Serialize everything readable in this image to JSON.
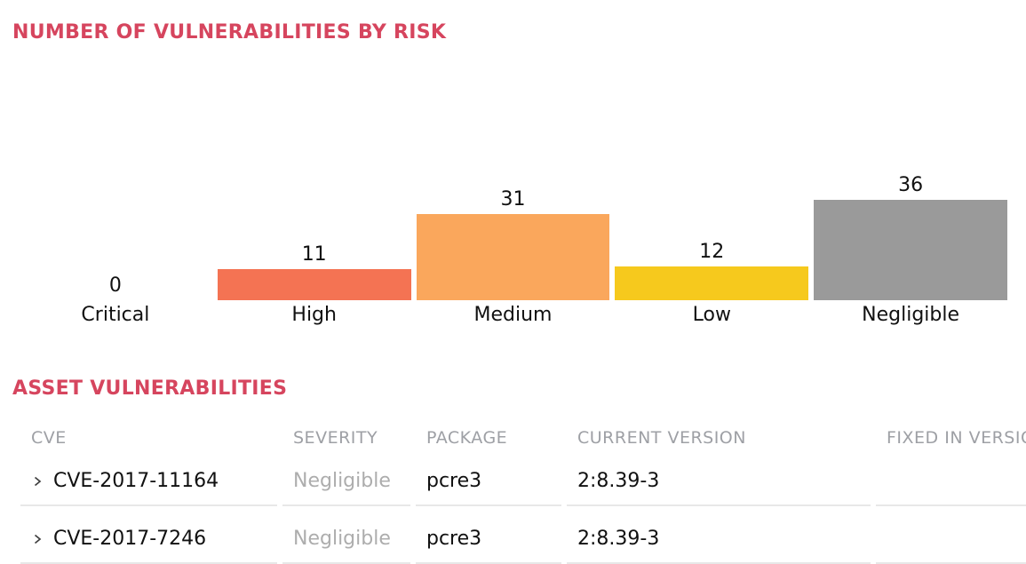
{
  "risk_chart": {
    "title": "NUMBER OF VULNERABILITIES BY RISK",
    "chart_data": {
      "type": "bar",
      "categories": [
        "Critical",
        "High",
        "Medium",
        "Low",
        "Negligible"
      ],
      "values": [
        0,
        11,
        31,
        12,
        36
      ],
      "bar_colors": [
        null,
        "#f47353",
        "#faa75c",
        "#f6c91d",
        "#9a9a9a"
      ],
      "title": "NUMBER OF VULNERABILITIES BY RISK",
      "xlabel": "",
      "ylabel": "",
      "ylim": [
        0,
        36
      ],
      "grid": false,
      "legend": false,
      "value_labels": true
    }
  },
  "asset_table": {
    "title": "ASSET VULNERABILITIES",
    "columns": [
      "CVE",
      "SEVERITY",
      "PACKAGE",
      "CURRENT VERSION",
      "FIXED IN VERSION"
    ],
    "rows": [
      {
        "cve": "CVE-2017-11164",
        "severity": "Negligible",
        "package": "pcre3",
        "current_version": "2:8.39-3",
        "fixed_in_version": ""
      },
      {
        "cve": "CVE-2017-7246",
        "severity": "Negligible",
        "package": "pcre3",
        "current_version": "2:8.39-3",
        "fixed_in_version": ""
      }
    ]
  },
  "colors": {
    "section_title": "#d6455e",
    "table_header_text": "#9ea0a5",
    "severity_negligible_text": "#adadad",
    "body_text": "#111111",
    "divider": "#e8e8e8",
    "chevron": "#3f3f3f"
  },
  "icons": {
    "row_expander": "chevron-right-icon"
  }
}
